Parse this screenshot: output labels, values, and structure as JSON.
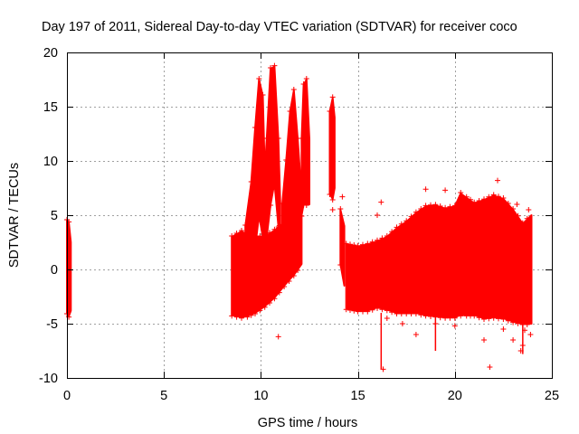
{
  "chart_data": {
    "type": "scatter",
    "title": "Day 197 of 2011, Sidereal Day-to-day VTEC variation (SDTVAR) for receiver coco",
    "xlabel": "GPS time / hours",
    "ylabel": "SDTVAR / TECUs",
    "xlim": [
      0,
      25
    ],
    "ylim": [
      -10,
      20
    ],
    "xticks": [
      0,
      5,
      10,
      15,
      20,
      25
    ],
    "yticks": [
      -10,
      -5,
      0,
      5,
      10,
      15,
      20
    ],
    "xtick_labels": [
      "0",
      "5",
      "10",
      "15",
      "20",
      "25"
    ],
    "ytick_labels": [
      "-10",
      "-5",
      "0",
      "5",
      "10",
      "15",
      "20"
    ],
    "grid": true,
    "marker": "+",
    "color": "#ff0000",
    "envelopes": [
      {
        "name": "early-block",
        "points": [
          [
            0.0,
            -4.0,
            4.5
          ],
          [
            0.1,
            -4.3,
            4.3
          ],
          [
            0.2,
            -3.8,
            2.5
          ]
        ]
      },
      {
        "name": "afternoon-block-base",
        "points": [
          [
            8.5,
            -4.2,
            3.0
          ],
          [
            9.0,
            -4.4,
            3.5
          ],
          [
            9.3,
            -4.3,
            3.2
          ],
          [
            9.7,
            -4.0,
            3.0
          ],
          [
            10.2,
            -3.4,
            3.0
          ],
          [
            10.7,
            -2.6,
            3.6
          ],
          [
            11.2,
            -1.5,
            4.3
          ],
          [
            11.7,
            -0.5,
            5.5
          ],
          [
            12.1,
            0.5,
            8.0
          ]
        ]
      },
      {
        "name": "spike-1",
        "points": [
          [
            9.2,
            -1.0,
            4.0
          ],
          [
            9.5,
            0.0,
            8.0
          ],
          [
            9.7,
            2.0,
            13.0
          ],
          [
            9.9,
            5.0,
            17.5
          ],
          [
            10.1,
            3.0,
            16.0
          ],
          [
            10.2,
            -1.0,
            9.0
          ]
        ]
      },
      {
        "name": "spike-2",
        "points": [
          [
            10.1,
            -1.0,
            6.0
          ],
          [
            10.3,
            3.0,
            12.0
          ],
          [
            10.5,
            6.0,
            18.5
          ],
          [
            10.7,
            8.0,
            18.7
          ],
          [
            10.9,
            4.0,
            12.0
          ],
          [
            11.0,
            0.0,
            6.0
          ]
        ]
      },
      {
        "name": "spike-3",
        "points": [
          [
            11.1,
            0.5,
            6.0
          ],
          [
            11.3,
            2.5,
            10.0
          ],
          [
            11.5,
            4.0,
            14.5
          ],
          [
            11.7,
            5.0,
            16.5
          ],
          [
            11.9,
            3.5,
            12.0
          ],
          [
            12.05,
            1.0,
            8.0
          ]
        ]
      },
      {
        "name": "spike-4",
        "points": [
          [
            12.1,
            5.0,
            12.0
          ],
          [
            12.2,
            6.0,
            17.0
          ],
          [
            12.35,
            6.0,
            17.5
          ],
          [
            12.5,
            6.0,
            12.0
          ]
        ]
      },
      {
        "name": "peak-column",
        "points": [
          [
            13.55,
            7.0,
            14.5
          ],
          [
            13.7,
            6.5,
            15.8
          ],
          [
            13.8,
            7.5,
            14.0
          ]
        ]
      },
      {
        "name": "step-down",
        "points": [
          [
            14.1,
            0.5,
            5.5
          ],
          [
            14.3,
            -1.5,
            4.0
          ]
        ]
      },
      {
        "name": "night-block",
        "points": [
          [
            14.4,
            -3.6,
            2.3
          ],
          [
            15.0,
            -3.8,
            2.1
          ],
          [
            15.5,
            -3.8,
            2.3
          ],
          [
            16.0,
            -3.5,
            2.6
          ],
          [
            16.5,
            -3.7,
            3.0
          ],
          [
            17.0,
            -4.0,
            3.8
          ],
          [
            17.5,
            -4.0,
            4.4
          ],
          [
            18.0,
            -4.0,
            5.2
          ],
          [
            18.5,
            -4.2,
            5.8
          ],
          [
            19.0,
            -4.3,
            5.9
          ],
          [
            19.5,
            -4.4,
            5.6
          ],
          [
            20.0,
            -4.4,
            5.8
          ],
          [
            20.3,
            -4.2,
            7.0
          ],
          [
            20.6,
            -4.2,
            6.6
          ],
          [
            21.0,
            -4.2,
            6.1
          ],
          [
            21.5,
            -4.5,
            6.4
          ],
          [
            22.0,
            -4.4,
            6.8
          ],
          [
            22.5,
            -4.5,
            6.5
          ],
          [
            23.0,
            -4.8,
            5.5
          ],
          [
            23.5,
            -5.0,
            4.2
          ],
          [
            23.95,
            -5.0,
            5.0
          ]
        ]
      }
    ],
    "outliers": [
      [
        10.9,
        -6.2
      ],
      [
        13.7,
        5.5
      ],
      [
        13.65,
        12.0
      ],
      [
        14.2,
        6.7
      ],
      [
        16.0,
        5.0
      ],
      [
        16.3,
        -9.2
      ],
      [
        16.2,
        6.2
      ],
      [
        16.5,
        -4.5
      ],
      [
        17.3,
        -5.0
      ],
      [
        18.0,
        -6.0
      ],
      [
        18.5,
        7.4
      ],
      [
        19.0,
        -5.0
      ],
      [
        19.5,
        7.3
      ],
      [
        20.0,
        -5.2
      ],
      [
        21.5,
        -6.5
      ],
      [
        21.8,
        -9.0
      ],
      [
        22.2,
        8.2
      ],
      [
        22.5,
        -5.5
      ],
      [
        23.0,
        -6.5
      ],
      [
        23.2,
        6.0
      ],
      [
        23.4,
        -7.5
      ],
      [
        23.5,
        -7.0
      ],
      [
        23.6,
        -5.6
      ],
      [
        23.8,
        5.5
      ],
      [
        23.9,
        -6.0
      ]
    ],
    "whiskers": [
      [
        16.2,
        -9.2,
        -4.0
      ],
      [
        19.0,
        -7.5,
        -4.0
      ],
      [
        13.65,
        10.0,
        13.5
      ],
      [
        23.5,
        -7.8,
        -5.0
      ]
    ]
  }
}
